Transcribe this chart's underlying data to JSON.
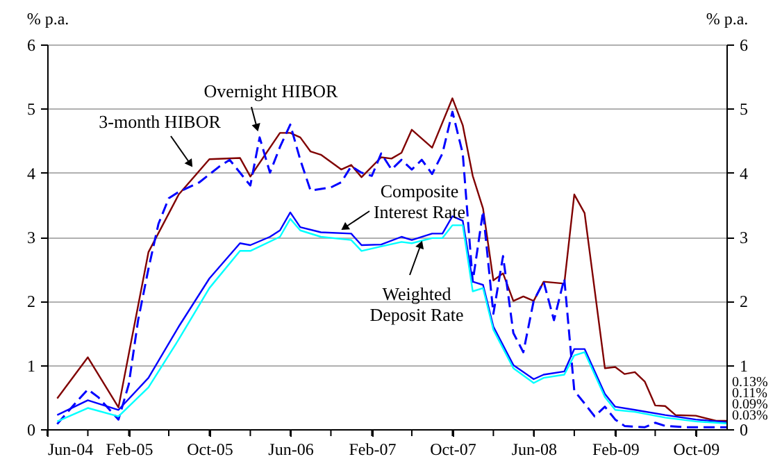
{
  "chart_data": {
    "type": "line",
    "ylabel": "% p.a.",
    "y2label": "% p.a.",
    "xlim": [
      "2004-06",
      "2010-01"
    ],
    "xticks": [
      {
        "value": "2004-06",
        "label": "Jun-04"
      },
      {
        "value": "2004-10",
        "label": null
      },
      {
        "value": "2005-02",
        "label": "Feb-05"
      },
      {
        "value": "2005-06",
        "label": null
      },
      {
        "value": "2005-10",
        "label": "Oct-05"
      },
      {
        "value": "2006-02",
        "label": null
      },
      {
        "value": "2006-06",
        "label": "Jun-06"
      },
      {
        "value": "2006-10",
        "label": null
      },
      {
        "value": "2007-02",
        "label": "Feb-07"
      },
      {
        "value": "2007-06",
        "label": null
      },
      {
        "value": "2007-10",
        "label": "Oct-07"
      },
      {
        "value": "2008-02",
        "label": null
      },
      {
        "value": "2008-06",
        "label": "Jun-08"
      },
      {
        "value": "2008-10",
        "label": null
      },
      {
        "value": "2009-02",
        "label": "Feb-09"
      },
      {
        "value": "2009-06",
        "label": null
      },
      {
        "value": "2009-10",
        "label": "Oct-09"
      }
    ],
    "ylim": [
      0,
      6
    ],
    "yticks": [
      0,
      1,
      2,
      3,
      4,
      5,
      6
    ],
    "y2lim": [
      0,
      6
    ],
    "y2ticks": [
      0,
      1,
      2,
      3,
      4,
      5,
      6
    ],
    "grid": "y",
    "series": [
      {
        "name": "3-month HIBOR",
        "color": "#800000",
        "line_style": "solid",
        "x": [
          "2004-07",
          "2004-10",
          "2005-01",
          "2005-04",
          "2005-07",
          "2005-10",
          "2006-01",
          "2006-02",
          "2006-05",
          "2006-06",
          "2006-07",
          "2006-08",
          "2006-09",
          "2006-11",
          "2006-12",
          "2007-01",
          "2007-03",
          "2007-04",
          "2007-05",
          "2007-06",
          "2007-08",
          "2007-10",
          "2007-11",
          "2007-12",
          "2008-01",
          "2008-02",
          "2008-03",
          "2008-04",
          "2008-05",
          "2008-06",
          "2008-07",
          "2008-09",
          "2008-10",
          "2008-11",
          "2009-01",
          "2009-02",
          "2009-03",
          "2009-04",
          "2009-05",
          "2009-06",
          "2009-07",
          "2009-08",
          "2009-10",
          "2009-12",
          "2010-01"
        ],
        "values": [
          0.48,
          1.12,
          0.34,
          2.76,
          3.66,
          4.21,
          4.23,
          3.94,
          4.62,
          4.62,
          4.55,
          4.33,
          4.28,
          4.05,
          4.12,
          3.93,
          4.24,
          4.22,
          4.31,
          4.67,
          4.39,
          5.16,
          4.74,
          3.95,
          3.44,
          2.32,
          2.43,
          2.0,
          2.07,
          2.0,
          2.3,
          2.27,
          3.66,
          3.37,
          0.95,
          0.97,
          0.86,
          0.89,
          0.74,
          0.37,
          0.36,
          0.22,
          0.21,
          0.13,
          0.13
        ],
        "value_labels": [
          null,
          null,
          null,
          null,
          null,
          null,
          null,
          null,
          null,
          null,
          null,
          null,
          null,
          null,
          null,
          null,
          null,
          null,
          null,
          null,
          null,
          null,
          null,
          null,
          null,
          null,
          null,
          null,
          null,
          null,
          null,
          null,
          null,
          null,
          null,
          null,
          null,
          null,
          null,
          null,
          null,
          null,
          null,
          null,
          "0.13%"
        ]
      },
      {
        "name": "Overnight HIBOR",
        "color": "#0000ff",
        "line_style": "dashed",
        "x": [
          "2004-07",
          "2004-09",
          "2004-10",
          "2004-11",
          "2005-01",
          "2005-02",
          "2005-03",
          "2005-04",
          "2005-05",
          "2005-06",
          "2005-07",
          "2005-09",
          "2005-11",
          "2005-12",
          "2006-02",
          "2006-03",
          "2006-04",
          "2006-05",
          "2006-06",
          "2006-07",
          "2006-08",
          "2006-10",
          "2006-11",
          "2006-12",
          "2007-01",
          "2007-02",
          "2007-03",
          "2007-04",
          "2007-05",
          "2007-06",
          "2007-07",
          "2007-08",
          "2007-09",
          "2007-10",
          "2007-11",
          "2007-12",
          "2008-01",
          "2008-02",
          "2008-03",
          "2008-04",
          "2008-05",
          "2008-06",
          "2008-07",
          "2008-08",
          "2008-09",
          "2008-10",
          "2008-11",
          "2008-12",
          "2009-01",
          "2009-02",
          "2009-03",
          "2009-05",
          "2009-06",
          "2009-07",
          "2009-09",
          "2009-12",
          "2010-01"
        ],
        "values": [
          0.08,
          0.45,
          0.62,
          0.5,
          0.15,
          0.7,
          1.7,
          2.5,
          3.2,
          3.6,
          3.7,
          3.85,
          4.1,
          4.2,
          3.8,
          4.55,
          4.0,
          4.4,
          4.75,
          4.2,
          3.72,
          3.77,
          3.85,
          4.1,
          4.0,
          3.95,
          4.3,
          4.05,
          4.2,
          4.05,
          4.2,
          3.98,
          4.3,
          4.95,
          4.3,
          2.3,
          3.4,
          1.8,
          2.7,
          1.5,
          1.2,
          2.0,
          2.3,
          1.7,
          2.35,
          0.6,
          0.4,
          0.2,
          0.35,
          0.15,
          0.05,
          0.03,
          0.1,
          0.05,
          0.03,
          0.03,
          0.03
        ],
        "value_labels": [
          null,
          null,
          null,
          null,
          null,
          null,
          null,
          null,
          null,
          null,
          null,
          null,
          null,
          null,
          null,
          null,
          null,
          null,
          null,
          null,
          null,
          null,
          null,
          null,
          null,
          null,
          null,
          null,
          null,
          null,
          null,
          null,
          null,
          null,
          null,
          null,
          null,
          null,
          null,
          null,
          null,
          null,
          null,
          null,
          null,
          null,
          null,
          null,
          null,
          null,
          null,
          null,
          null,
          null,
          null,
          null,
          "0.03%"
        ]
      },
      {
        "name": "Composite Interest Rate",
        "color": "#0000ff",
        "line_style": "solid",
        "x": [
          "2004-07",
          "2004-10",
          "2005-01",
          "2005-04",
          "2005-07",
          "2005-10",
          "2006-01",
          "2006-02",
          "2006-04",
          "2006-05",
          "2006-06",
          "2006-07",
          "2006-09",
          "2006-12",
          "2007-01",
          "2007-03",
          "2007-05",
          "2007-06",
          "2007-08",
          "2007-09",
          "2007-10",
          "2007-11",
          "2007-12",
          "2008-01",
          "2008-02",
          "2008-04",
          "2008-06",
          "2008-07",
          "2008-09",
          "2008-10",
          "2008-11",
          "2009-01",
          "2009-02",
          "2009-04",
          "2009-07",
          "2009-10",
          "2010-01"
        ],
        "values": [
          0.22,
          0.45,
          0.3,
          0.8,
          1.6,
          2.35,
          2.9,
          2.87,
          3.0,
          3.1,
          3.38,
          3.15,
          3.07,
          3.05,
          2.87,
          2.88,
          3.0,
          2.95,
          3.05,
          3.05,
          3.32,
          3.25,
          2.3,
          2.25,
          1.6,
          1.0,
          0.78,
          0.85,
          0.9,
          1.25,
          1.25,
          0.55,
          0.35,
          0.3,
          0.22,
          0.15,
          0.11
        ],
        "value_labels": [
          null,
          null,
          null,
          null,
          null,
          null,
          null,
          null,
          null,
          null,
          null,
          null,
          null,
          null,
          null,
          null,
          null,
          null,
          null,
          null,
          null,
          null,
          null,
          null,
          null,
          null,
          null,
          null,
          null,
          null,
          null,
          null,
          null,
          null,
          null,
          null,
          "0.11%"
        ]
      },
      {
        "name": "Weighted Deposit Rate",
        "color": "#00ffff",
        "line_style": "solid",
        "x": [
          "2004-07",
          "2004-10",
          "2005-01",
          "2005-04",
          "2005-07",
          "2005-10",
          "2006-01",
          "2006-02",
          "2006-05",
          "2006-06",
          "2006-07",
          "2006-09",
          "2006-12",
          "2007-01",
          "2007-03",
          "2007-05",
          "2007-06",
          "2007-08",
          "2007-09",
          "2007-10",
          "2007-11",
          "2007-12",
          "2008-01",
          "2008-02",
          "2008-04",
          "2008-06",
          "2008-07",
          "2008-09",
          "2008-10",
          "2008-11",
          "2009-01",
          "2009-02",
          "2009-04",
          "2009-07",
          "2009-10",
          "2010-01"
        ],
        "values": [
          0.12,
          0.33,
          0.2,
          0.65,
          1.4,
          2.2,
          2.78,
          2.78,
          3.0,
          3.28,
          3.1,
          3.0,
          2.95,
          2.78,
          2.85,
          2.92,
          2.9,
          2.98,
          2.98,
          3.18,
          3.18,
          2.15,
          2.2,
          1.55,
          0.95,
          0.72,
          0.8,
          0.85,
          1.15,
          1.2,
          0.5,
          0.3,
          0.27,
          0.18,
          0.12,
          0.09
        ],
        "value_labels": [
          null,
          null,
          null,
          null,
          null,
          null,
          null,
          null,
          null,
          null,
          null,
          null,
          null,
          null,
          null,
          null,
          null,
          null,
          null,
          null,
          null,
          null,
          null,
          null,
          null,
          null,
          null,
          null,
          null,
          null,
          null,
          null,
          null,
          null,
          null,
          "0.09%"
        ]
      }
    ]
  }
}
